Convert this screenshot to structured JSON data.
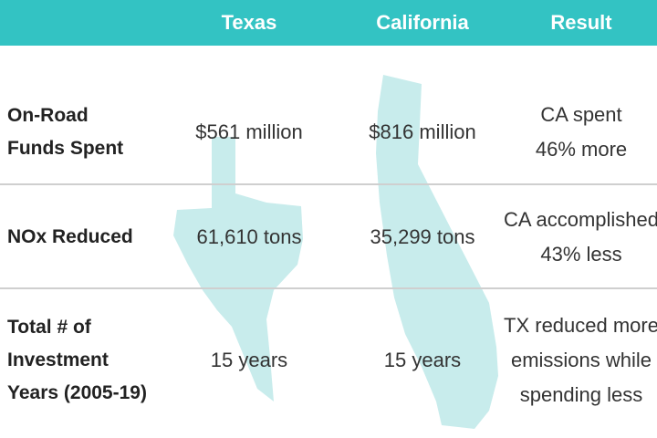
{
  "header": {
    "columns": [
      "Texas",
      "California",
      "Result"
    ]
  },
  "rows": [
    {
      "label": [
        "On-Road",
        "Funds Spent"
      ],
      "texas": "$561 million",
      "california": "$816 million",
      "result": [
        "CA spent",
        "46% more"
      ]
    },
    {
      "label": [
        "NOx Reduced"
      ],
      "texas": "61,610 tons",
      "california": "35,299 tons",
      "result": [
        "CA accomplished",
        "43% less"
      ]
    },
    {
      "label": [
        "Total # of",
        "Investment",
        "Years (2005-19)"
      ],
      "texas": "15 years",
      "california": "15 years",
      "result": [
        "TX reduced more",
        "emissions while",
        "spending less"
      ]
    }
  ]
}
